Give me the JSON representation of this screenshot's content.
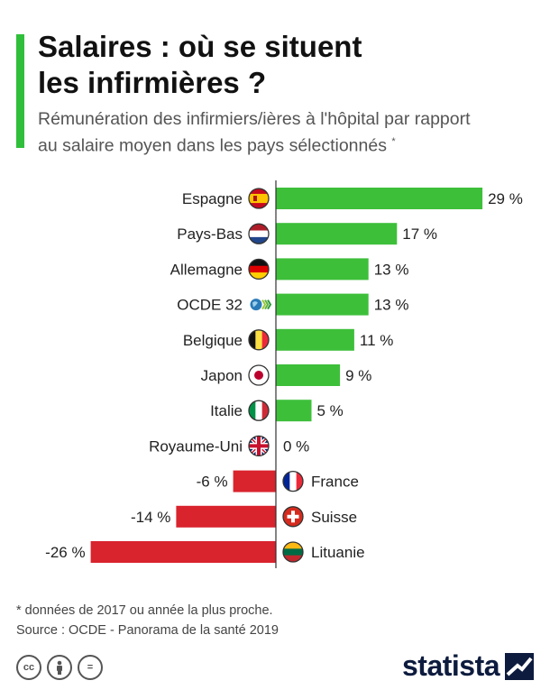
{
  "header": {
    "title_line1": "Salaires : où se situent",
    "title_line2": "les infirmières ?",
    "subtitle_line1": "Rémunération des infirmiers/ières à l'hôpital par rapport",
    "subtitle_line2": "au salaire moyen dans les pays sélectionnés",
    "subtitle_mark": "*"
  },
  "chart_data": {
    "type": "bar",
    "orientation": "horizontal",
    "categories": [
      "Espagne",
      "Pays-Bas",
      "Allemagne",
      "OCDE 32",
      "Belgique",
      "Japon",
      "Italie",
      "Royaume-Uni",
      "France",
      "Suisse",
      "Lituanie"
    ],
    "values": [
      29,
      17,
      13,
      13,
      11,
      9,
      5,
      0,
      -6,
      -14,
      -26
    ],
    "value_labels": [
      "29 %",
      "17 %",
      "13 %",
      "13 %",
      "11 %",
      "9 %",
      "5 %",
      "0 %",
      "-6 %",
      "-14 %",
      "-26 %"
    ],
    "flag_icons": [
      "spain-flag-icon",
      "netherlands-flag-icon",
      "germany-flag-icon",
      "oecd-logo-icon",
      "belgium-flag-icon",
      "japan-flag-icon",
      "italy-flag-icon",
      "uk-flag-icon",
      "france-flag-icon",
      "switzerland-flag-icon",
      "lithuania-flag-icon"
    ],
    "colors": {
      "positive": "#3dbf3a",
      "negative": "#d9232d",
      "axis": "#333333"
    },
    "xlim": [
      -28,
      30
    ],
    "grid": false,
    "legend": "none"
  },
  "footer": {
    "note": "* données de 2017 ou année la plus proche.",
    "source": "Source : OCDE - Panorama de la santé 2019",
    "brand": "statista",
    "license_icons": [
      "cc-icon",
      "attribution-icon",
      "no-derivatives-icon"
    ],
    "license_glyphs": [
      "cc",
      "",
      "="
    ]
  }
}
